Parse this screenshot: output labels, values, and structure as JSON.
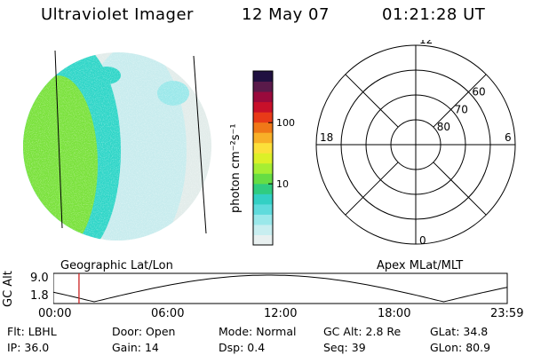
{
  "header": {
    "instrument": "Ultraviolet Imager",
    "date": "12 May 07",
    "time": "01:21:28 UT"
  },
  "colorbar": {
    "unit_label": "photon cm⁻²s⁻¹",
    "ticks": [
      {
        "value": 10,
        "label": "10"
      },
      {
        "value": 100,
        "label": "100"
      }
    ],
    "colors": [
      "#e8f0f0",
      "#c8eef0",
      "#9ae8ea",
      "#5fdbdc",
      "#33d0c4",
      "#30cc80",
      "#66dd44",
      "#a6ee33",
      "#dcf028",
      "#fce03a",
      "#f8b028",
      "#f07818",
      "#e83a18",
      "#c8102a",
      "#9a0a3c",
      "#5a1a4a",
      "#201040"
    ]
  },
  "image_panel": {
    "colors": {
      "green": "#7ae23c",
      "teal": "#2fd6c8",
      "light": "#c8ecee",
      "pale": "#e2ecea"
    }
  },
  "polar": {
    "mlt_labels": [
      {
        "text": "12",
        "angle": 90
      },
      {
        "text": "6",
        "angle": 0
      },
      {
        "text": "0",
        "angle": 270
      },
      {
        "text": "18",
        "angle": 180
      }
    ],
    "lat_labels": [
      {
        "text": "60",
        "ring": 60
      },
      {
        "text": "70",
        "ring": 70
      },
      {
        "text": "80",
        "ring": 80
      }
    ]
  },
  "timeline": {
    "left_label": "Geographic Lat/Lon",
    "right_label": "Apex MLat/MLT",
    "axis_title": "GC Alt",
    "y_ticks": [
      "9.0",
      "1.8"
    ],
    "x_ticks": [
      "00:00",
      "06:00",
      "12:00",
      "18:00",
      "23:59"
    ],
    "marker_time": "01:21:28",
    "marker_color": "#cc2222"
  },
  "info": {
    "row1": [
      {
        "label": "Flt:",
        "value": "LBHL"
      },
      {
        "label": "Door:",
        "value": "Open"
      },
      {
        "label": "Mode:",
        "value": "Normal"
      },
      {
        "label": "GC Alt:",
        "value": "2.8 Re"
      },
      {
        "label": "GLat:",
        "value": "34.8"
      }
    ],
    "row2": [
      {
        "label": "IP:",
        "value": "36.0"
      },
      {
        "label": "Gain:",
        "value": "14"
      },
      {
        "label": "Dsp:",
        "value": "0.4"
      },
      {
        "label": "Seq:",
        "value": "39"
      },
      {
        "label": "GLon:",
        "value": "80.9"
      }
    ]
  }
}
